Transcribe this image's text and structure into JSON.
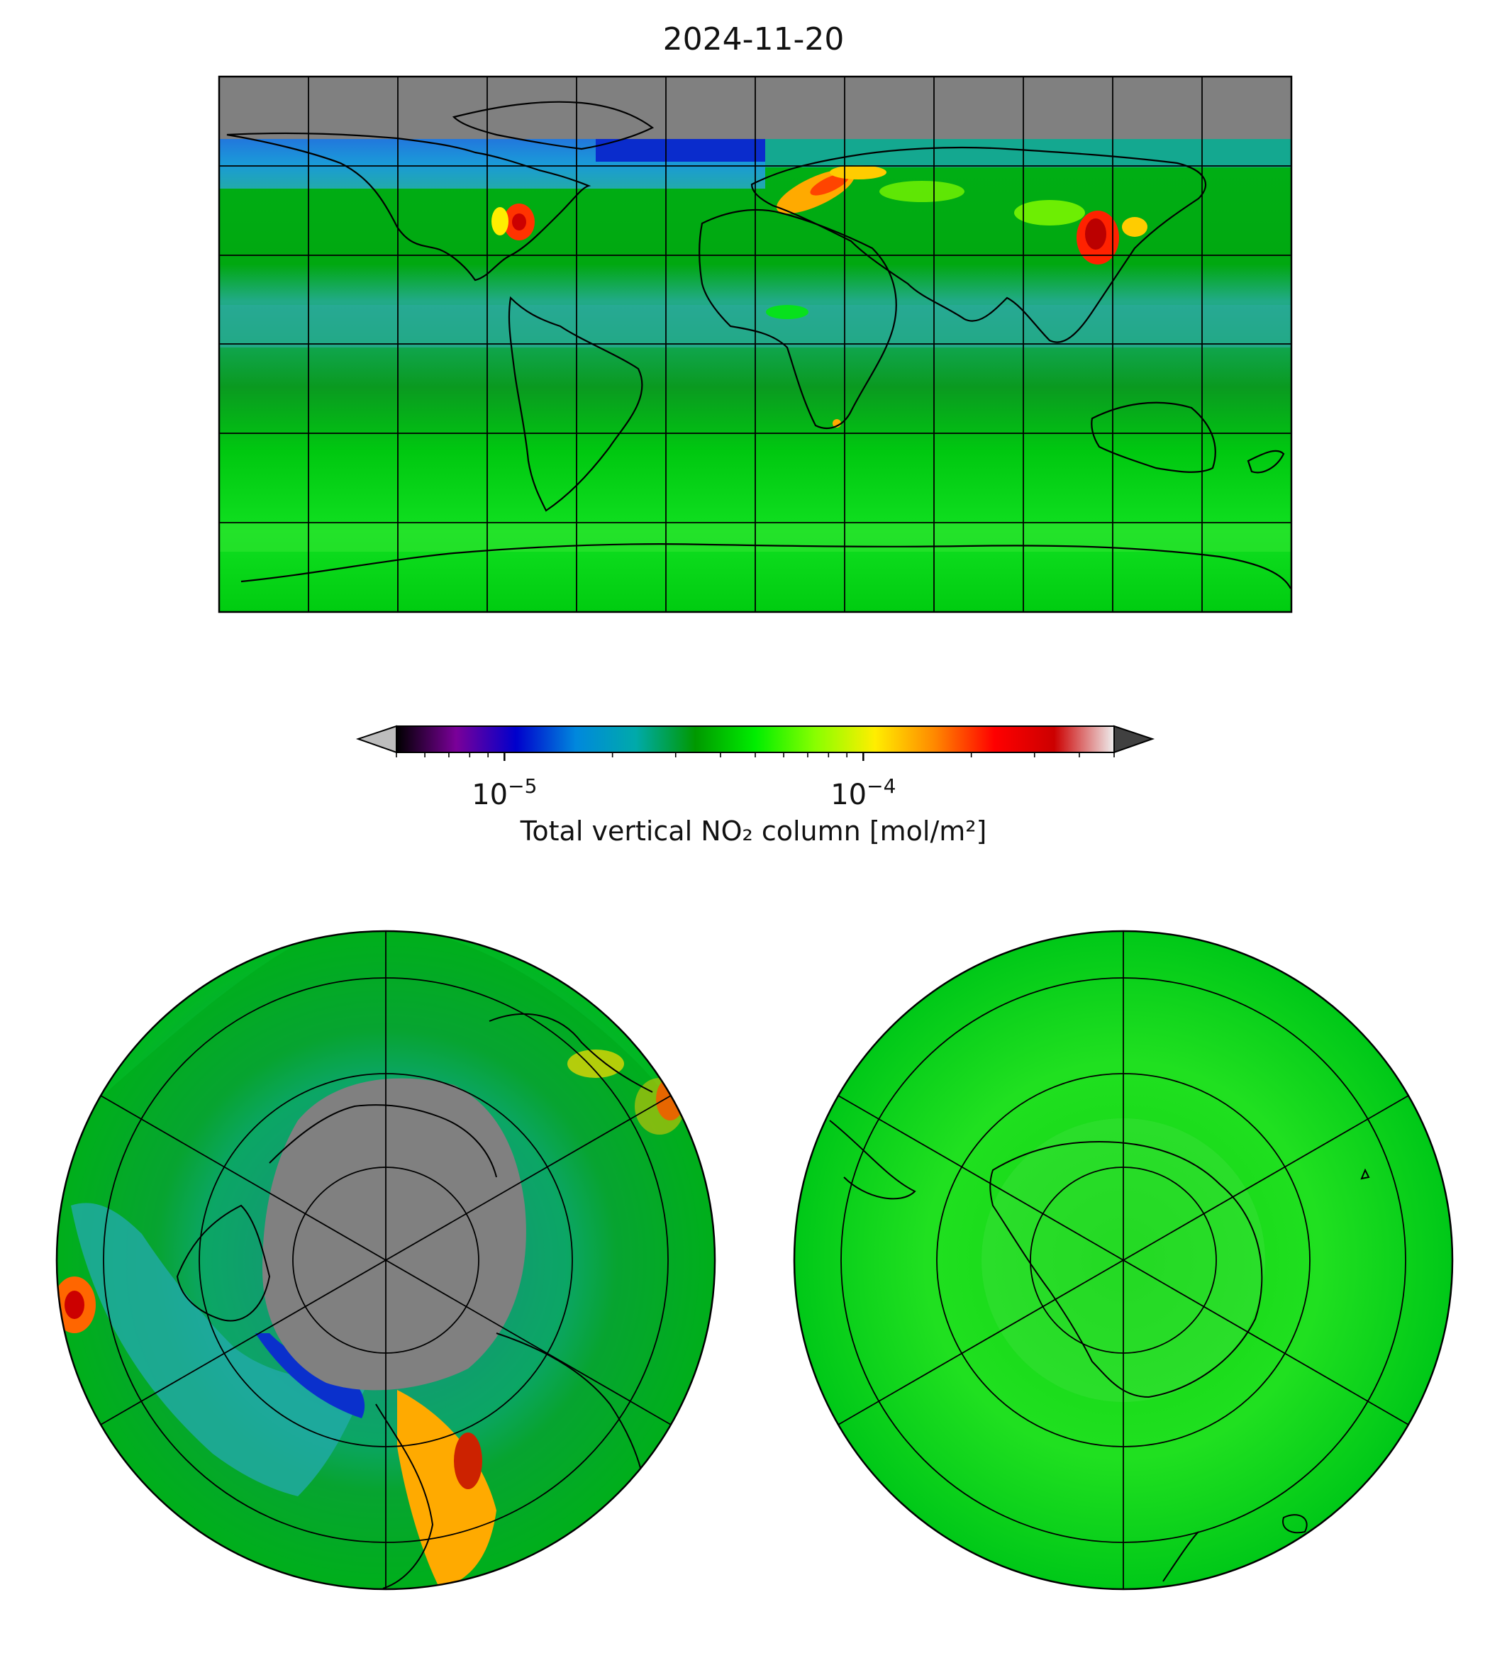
{
  "title": "2024-11-20",
  "colorbar": {
    "label": "Total vertical NO₂ column [mol/m²]",
    "scale": "log",
    "range": [
      5e-06,
      0.0005
    ],
    "ticks": [
      {
        "value": 1e-05,
        "base": "10",
        "exp": "−5"
      },
      {
        "value": 0.0001,
        "base": "10",
        "exp": "−4"
      }
    ],
    "extend": "both",
    "colors": [
      "#000000",
      "#7a0099",
      "#0000cc",
      "#0088dd",
      "#00aaaa",
      "#009900",
      "#00ee00",
      "#88ff00",
      "#ffee00",
      "#ff8800",
      "#ff0000",
      "#cc0000",
      "#eeeeee"
    ]
  },
  "panels": [
    {
      "name": "global-map",
      "projection": "plate-carree"
    },
    {
      "name": "north-polar-map",
      "projection": "north-polar-stereographic"
    },
    {
      "name": "south-polar-map",
      "projection": "south-polar-stereographic"
    }
  ],
  "chart_data": {
    "type": "heatmap",
    "title": "2024-11-20",
    "colorbar_label": "Total vertical NO₂ column [mol/m²]",
    "colorbar_scale": "log",
    "colorbar_range": [
      5e-06,
      0.0005
    ]
  }
}
